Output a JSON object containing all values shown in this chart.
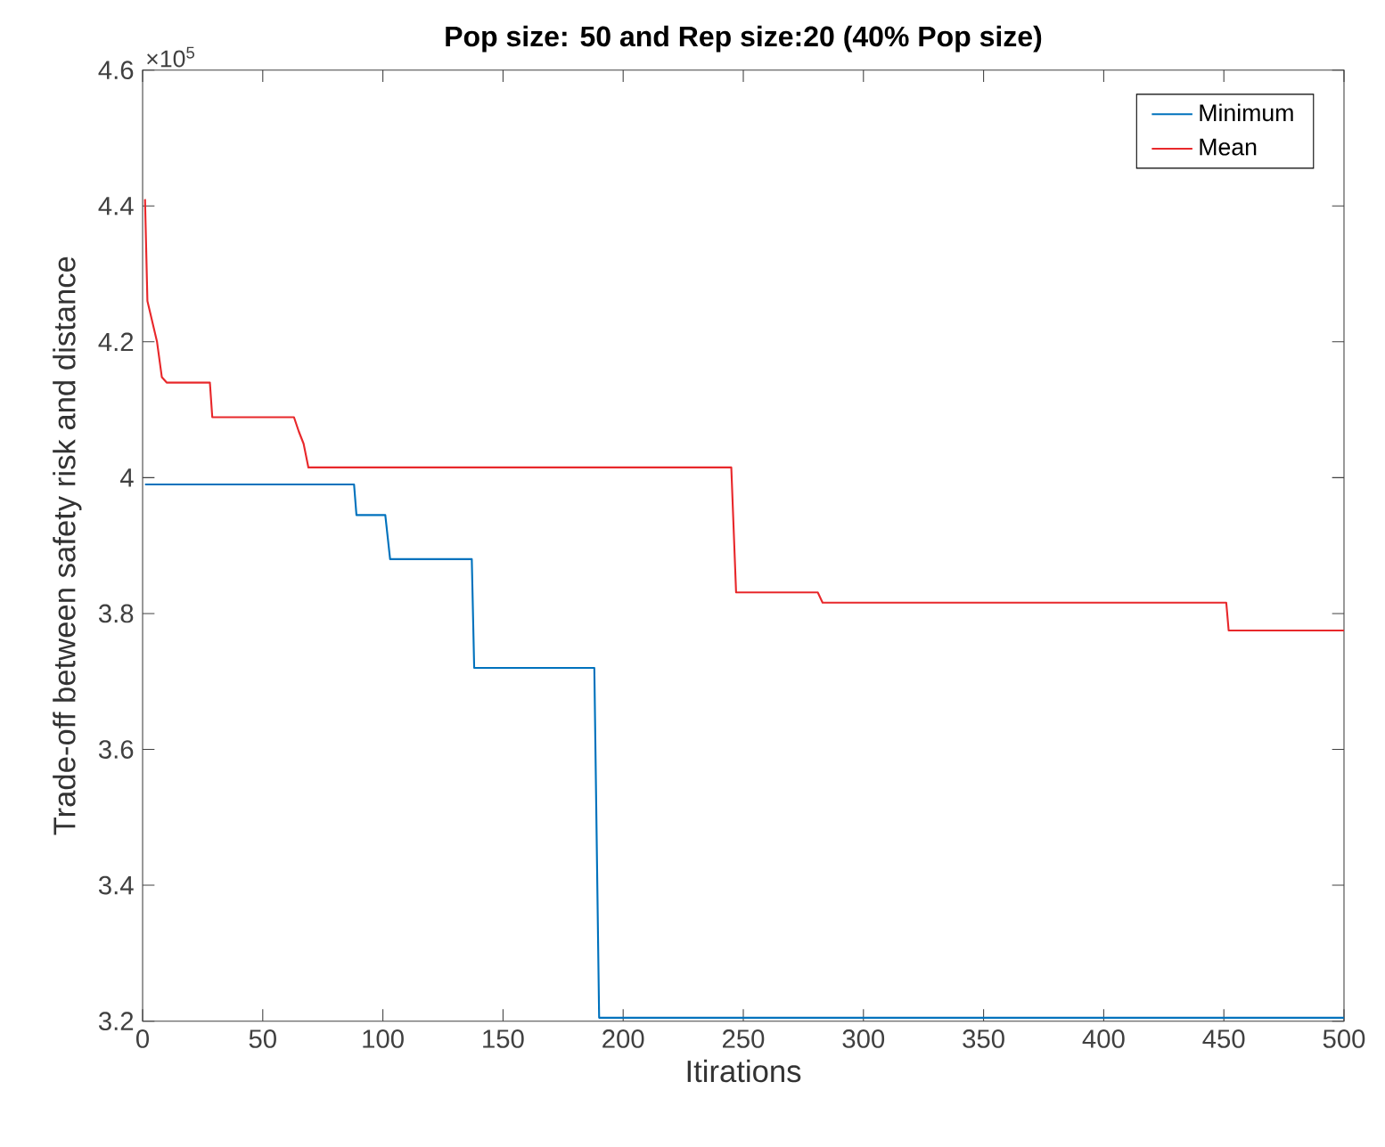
{
  "chart_data": {
    "type": "line",
    "title": "Pop size: 50 and Rep size:20 (40% Pop size)",
    "xlabel": "Itirations",
    "ylabel": "Trade-off between safety risk and distance",
    "annotations": [
      "×10$^{5}$"
    ],
    "xlim": [
      0,
      500
    ],
    "ylim": [
      3.2,
      4.6
    ],
    "xticks": [
      0,
      50,
      100,
      150,
      200,
      250,
      300,
      350,
      400,
      450,
      500
    ],
    "yticks": [
      3.2,
      3.4,
      3.6,
      3.8,
      4,
      4.2,
      4.4,
      4.6
    ],
    "legend": "top right",
    "grid": false,
    "marker": "none",
    "line_style": "solid",
    "series": [
      {
        "name": "Minimum",
        "color": "#0072bd",
        "x": [
          1,
          88,
          89,
          101,
          103,
          137,
          138,
          188,
          190,
          500
        ],
        "values": [
          3.99,
          3.99,
          3.945,
          3.945,
          3.88,
          3.88,
          3.72,
          3.72,
          3.205,
          3.205
        ]
      },
      {
        "name": "Mean",
        "color": "#e8282b",
        "x": [
          1,
          2,
          6,
          8,
          10,
          28,
          29,
          63,
          65,
          67,
          69,
          245,
          247,
          281,
          283,
          451,
          452,
          500
        ],
        "values": [
          4.41,
          4.26,
          4.2,
          4.148,
          4.14,
          4.14,
          4.089,
          4.089,
          4.068,
          4.05,
          4.015,
          4.015,
          3.831,
          3.831,
          3.816,
          3.816,
          3.775,
          3.775
        ]
      }
    ]
  }
}
